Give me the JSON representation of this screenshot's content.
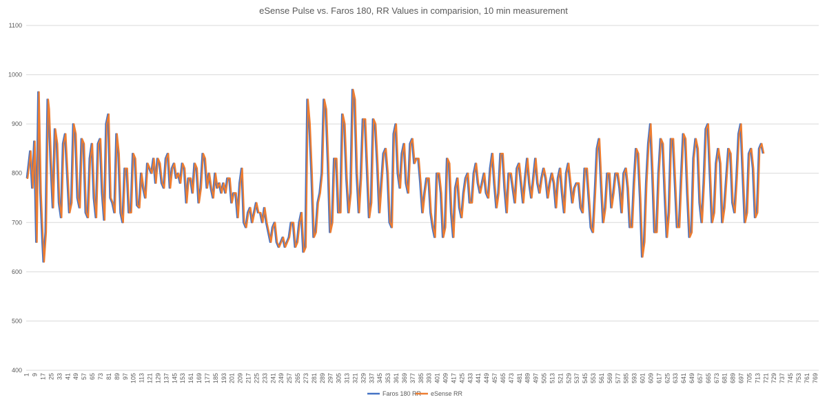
{
  "chart_data": {
    "type": "line",
    "title": "eSense Pulse vs. Faros 180, RR Values in comparision, 10 min measurement",
    "xlabel": "",
    "ylabel": "",
    "ylim": [
      400,
      1100
    ],
    "yticks": [
      400,
      500,
      600,
      700,
      800,
      900,
      1000,
      1100
    ],
    "x_count": 772,
    "xticks": [
      1,
      9,
      17,
      25,
      33,
      41,
      49,
      57,
      65,
      73,
      81,
      89,
      97,
      105,
      113,
      121,
      129,
      137,
      145,
      153,
      161,
      169,
      177,
      185,
      193,
      201,
      209,
      217,
      225,
      233,
      241,
      249,
      257,
      265,
      273,
      281,
      289,
      297,
      305,
      313,
      321,
      329,
      337,
      345,
      353,
      361,
      369,
      377,
      385,
      393,
      401,
      409,
      417,
      425,
      433,
      441,
      449,
      457,
      465,
      473,
      481,
      489,
      497,
      505,
      513,
      521,
      529,
      537,
      545,
      553,
      561,
      569,
      577,
      585,
      593,
      601,
      609,
      617,
      625,
      633,
      641,
      649,
      657,
      665,
      673,
      681,
      689,
      697,
      705,
      713,
      721,
      729,
      737,
      745,
      753,
      761,
      769
    ],
    "grid": true,
    "legend_position": "bottom",
    "colors": {
      "faros": "#4472C4",
      "esense": "#ED7D31",
      "grid": "#d9d9d9",
      "text": "#595959"
    },
    "series": [
      {
        "name": "Faros 180 RR",
        "color": "#4472C4",
        "lag": 0
      },
      {
        "name": "eSense RR",
        "color": "#ED7D31",
        "lag": 1
      }
    ],
    "anchors_x": [
      1,
      4,
      6,
      8,
      10,
      12,
      14,
      16,
      17,
      19,
      21,
      22,
      24,
      26,
      28,
      30,
      32,
      34,
      36,
      38,
      40,
      42,
      44,
      46,
      48,
      50,
      52,
      54,
      56,
      58,
      60,
      62,
      64,
      66,
      68,
      70,
      72,
      74,
      76,
      78,
      80,
      82,
      84,
      86,
      88,
      90,
      92,
      94,
      96,
      98,
      100,
      102,
      104,
      106,
      108,
      110,
      112,
      114,
      116,
      118,
      120,
      122,
      124,
      126,
      128,
      130,
      132,
      134,
      136,
      138,
      140,
      142,
      144,
      146,
      148,
      150,
      152,
      154,
      156,
      158,
      160,
      162,
      164,
      166,
      168,
      170,
      172,
      174,
      176,
      178,
      180,
      182,
      184,
      186,
      188,
      190,
      192,
      194,
      196,
      198,
      200,
      202,
      204,
      206,
      208,
      210,
      212,
      214,
      216,
      218,
      220,
      222,
      224,
      226,
      228,
      230,
      232,
      234,
      236,
      238,
      240,
      242,
      244,
      246,
      248,
      250,
      252,
      254,
      256,
      258,
      260,
      262,
      264,
      266,
      268,
      270,
      272,
      274,
      276,
      278,
      280,
      282,
      284,
      286,
      288,
      290,
      292,
      294,
      296,
      298,
      300,
      302,
      304,
      306,
      308,
      310,
      312,
      314,
      316,
      318,
      320,
      322,
      324,
      326,
      328,
      330,
      332,
      334,
      336,
      338,
      340,
      342,
      344,
      346,
      348,
      350,
      352,
      354,
      356,
      358,
      360,
      362,
      364,
      366,
      368,
      370,
      372,
      374,
      376,
      378,
      380,
      382,
      384,
      386,
      388,
      390,
      392,
      394,
      396,
      398,
      400,
      402,
      404,
      406,
      408,
      410,
      412,
      414,
      416,
      418,
      420,
      422,
      424,
      426,
      428,
      430,
      432,
      434,
      436,
      438,
      440,
      442,
      444,
      446,
      448,
      450,
      452,
      454,
      456,
      458,
      460,
      462,
      464,
      466,
      468,
      470,
      472,
      474,
      476,
      478,
      480,
      482,
      484,
      486,
      488,
      490,
      492,
      494,
      496,
      498,
      500,
      502,
      504,
      506,
      508,
      510,
      512,
      514,
      516,
      518,
      520,
      522,
      524,
      526,
      528,
      530,
      532,
      534,
      536,
      538,
      540,
      542,
      544,
      546,
      548,
      550,
      552,
      554,
      556,
      558,
      560,
      562,
      564,
      566,
      568,
      570,
      572,
      574,
      576,
      578,
      580,
      582,
      584,
      586,
      588,
      590,
      592,
      594,
      596,
      598,
      600,
      602,
      604,
      606,
      608,
      610,
      612,
      614,
      616,
      618,
      620,
      622,
      624,
      626,
      628,
      630,
      632,
      634,
      636,
      638,
      640,
      642,
      644,
      646,
      648,
      650,
      652,
      654,
      656,
      658,
      660,
      662,
      664,
      666,
      668,
      670,
      672,
      674,
      676,
      678,
      680,
      682,
      684,
      686,
      688,
      690,
      692,
      694,
      696,
      698,
      700,
      702,
      704,
      706,
      708,
      710,
      712,
      714,
      716,
      718,
      720,
      722,
      724,
      726,
      728,
      730,
      732,
      734,
      736,
      738,
      740,
      742,
      744,
      746,
      748,
      750,
      752,
      754,
      756,
      758,
      760,
      762,
      764,
      766,
      768,
      770,
      772
    ],
    "anchors_y": [
      790,
      845,
      770,
      865,
      660,
      965,
      760,
      660,
      620,
      680,
      950,
      930,
      820,
      730,
      890,
      860,
      740,
      710,
      860,
      880,
      800,
      720,
      740,
      900,
      880,
      750,
      730,
      870,
      860,
      720,
      710,
      830,
      860,
      750,
      710,
      860,
      870,
      760,
      705,
      900,
      920,
      750,
      740,
      720,
      880,
      840,
      720,
      700,
      810,
      810,
      720,
      720,
      840,
      830,
      735,
      730,
      800,
      770,
      750,
      820,
      810,
      800,
      830,
      780,
      830,
      820,
      780,
      770,
      830,
      840,
      770,
      810,
      820,
      790,
      800,
      780,
      820,
      810,
      740,
      790,
      790,
      760,
      820,
      810,
      740,
      770,
      840,
      830,
      770,
      800,
      770,
      750,
      800,
      770,
      780,
      760,
      780,
      760,
      790,
      790,
      740,
      760,
      760,
      710,
      780,
      810,
      700,
      690,
      720,
      730,
      700,
      720,
      740,
      720,
      720,
      700,
      730,
      700,
      680,
      660,
      690,
      700,
      660,
      650,
      660,
      670,
      650,
      660,
      670,
      700,
      700,
      650,
      660,
      700,
      720,
      640,
      650,
      950,
      900,
      800,
      670,
      680,
      740,
      760,
      800,
      950,
      930,
      820,
      680,
      700,
      830,
      830,
      720,
      720,
      920,
      900,
      790,
      720,
      760,
      970,
      950,
      800,
      720,
      790,
      910,
      910,
      810,
      710,
      740,
      910,
      900,
      820,
      720,
      780,
      840,
      850,
      800,
      700,
      690,
      880,
      900,
      800,
      770,
      840,
      860,
      780,
      760,
      860,
      870,
      820,
      830,
      830,
      780,
      720,
      760,
      790,
      790,
      720,
      690,
      670,
      800,
      800,
      760,
      670,
      690,
      830,
      820,
      720,
      670,
      770,
      790,
      730,
      710,
      760,
      790,
      800,
      740,
      740,
      800,
      820,
      780,
      760,
      780,
      800,
      760,
      750,
      810,
      840,
      780,
      730,
      760,
      840,
      840,
      770,
      720,
      800,
      800,
      770,
      740,
      810,
      820,
      780,
      740,
      790,
      830,
      780,
      750,
      790,
      830,
      780,
      760,
      790,
      810,
      790,
      750,
      780,
      800,
      780,
      730,
      790,
      810,
      760,
      720,
      800,
      820,
      780,
      740,
      770,
      780,
      780,
      730,
      720,
      810,
      810,
      750,
      690,
      680,
      760,
      850,
      870,
      780,
      700,
      730,
      800,
      800,
      730,
      760,
      800,
      800,
      770,
      720,
      800,
      810,
      770,
      690,
      690,
      780,
      850,
      840,
      750,
      630,
      660,
      780,
      860,
      900,
      800,
      680,
      680,
      800,
      870,
      860,
      760,
      670,
      720,
      870,
      870,
      780,
      690,
      690,
      790,
      880,
      870,
      760,
      670,
      680,
      830,
      870,
      850,
      740,
      700,
      780,
      890,
      900,
      800,
      700,
      720,
      820,
      850,
      820,
      700,
      730,
      790,
      850,
      840,
      740,
      720,
      790,
      880,
      900,
      800,
      700,
      720,
      840,
      850,
      810,
      710,
      720,
      850,
      860,
      840
    ]
  }
}
